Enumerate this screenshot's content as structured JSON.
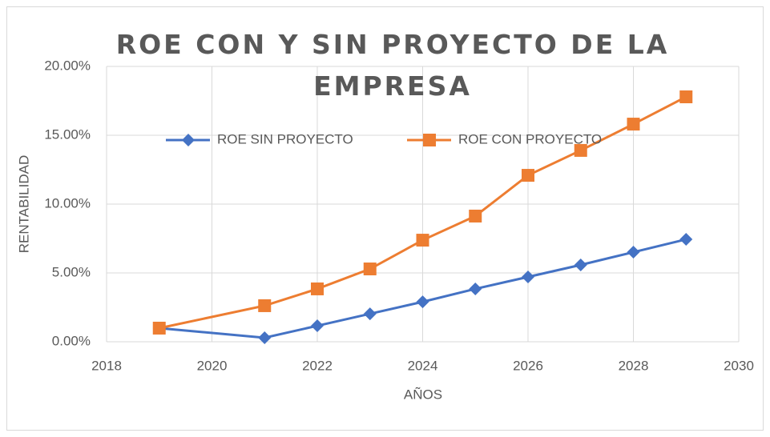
{
  "chart_data": {
    "type": "line",
    "title": "ROE CON Y SIN PROYECTO DE LA EMPRESA",
    "xlabel": "AÑOS",
    "ylabel": "RENTABILIDAD",
    "x": [
      2019,
      2021,
      2022,
      2023,
      2024,
      2025,
      2026,
      2027,
      2028,
      2029
    ],
    "series": [
      {
        "name": "ROE SIN PROYECTO",
        "color": "#4472c4",
        "marker": "diamond",
        "values": [
          0.99,
          0.29,
          1.16,
          2.03,
          2.9,
          3.84,
          4.71,
          5.58,
          6.51,
          7.44
        ]
      },
      {
        "name": "ROE CON PROYECTO",
        "color": "#ed7d31",
        "marker": "square",
        "values": [
          0.99,
          2.62,
          3.84,
          5.29,
          7.38,
          9.13,
          12.09,
          13.9,
          15.81,
          17.79
        ]
      }
    ],
    "xlim": [
      2018,
      2030
    ],
    "xticks": [
      2018,
      2020,
      2022,
      2024,
      2026,
      2028,
      2030
    ],
    "ylim": [
      0,
      20
    ],
    "yticks": [
      {
        "value": 0,
        "label": "0.00%"
      },
      {
        "value": 5,
        "label": "5.00%"
      },
      {
        "value": 10,
        "label": "10.00%"
      },
      {
        "value": 15,
        "label": "15.00%"
      },
      {
        "value": 20,
        "label": "20.00%"
      }
    ],
    "grid": true,
    "legend": "top"
  }
}
